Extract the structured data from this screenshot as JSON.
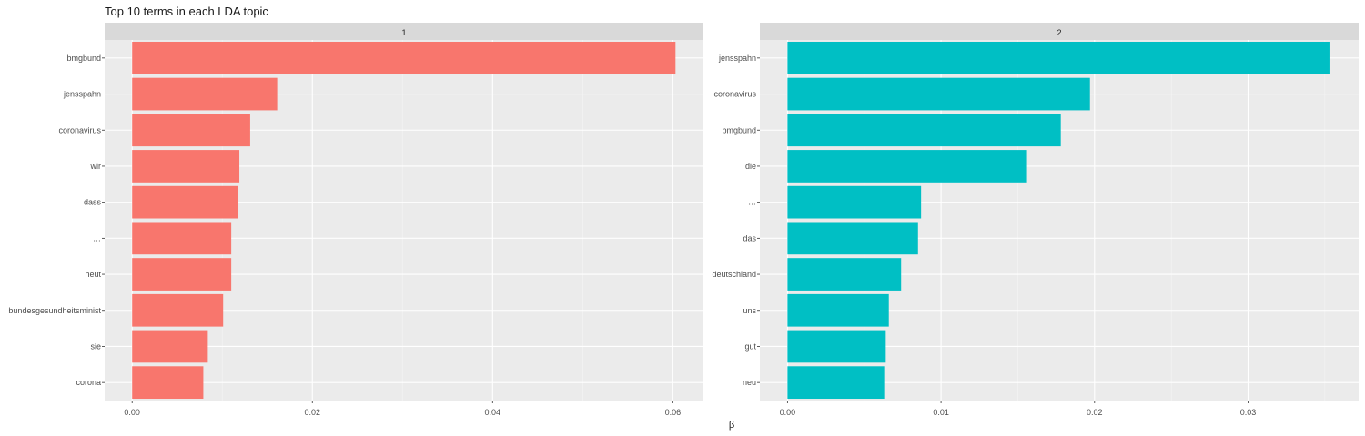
{
  "chart_data": {
    "type": "bar",
    "orientation": "horizontal",
    "title": "Top 10 terms in each LDA topic",
    "xlabel": "β",
    "ylabel": "",
    "grid": true,
    "facets": [
      {
        "label": "1",
        "color": "#F8766D",
        "xlim": [
          -0.00305,
          0.0634
        ],
        "xticks": [
          0.0,
          0.02,
          0.04,
          0.06
        ],
        "xtick_labels": [
          "0.00",
          "0.02",
          "0.04",
          "0.06"
        ],
        "categories": [
          "bmgbund",
          "jensspahn",
          "coronavirus",
          "wir",
          "dass",
          "…",
          "heut",
          "bundesgesundheitsminist",
          "sie",
          "corona"
        ],
        "values": [
          0.0603,
          0.0161,
          0.0131,
          0.0119,
          0.0117,
          0.011,
          0.011,
          0.0101,
          0.0084,
          0.0079
        ]
      },
      {
        "label": "2",
        "color": "#00BFC4",
        "xlim": [
          -0.0018,
          0.0372
        ],
        "xticks": [
          0.0,
          0.01,
          0.02,
          0.03
        ],
        "xtick_labels": [
          "0.00",
          "0.01",
          "0.02",
          "0.03"
        ],
        "categories": [
          "jensspahn",
          "coronavirus",
          "bmgbund",
          "die",
          "…",
          "das",
          "deutschland",
          "uns",
          "gut",
          "neu"
        ],
        "values": [
          0.0353,
          0.0197,
          0.0178,
          0.0156,
          0.0087,
          0.0085,
          0.0074,
          0.0066,
          0.0064,
          0.0063
        ]
      }
    ]
  }
}
